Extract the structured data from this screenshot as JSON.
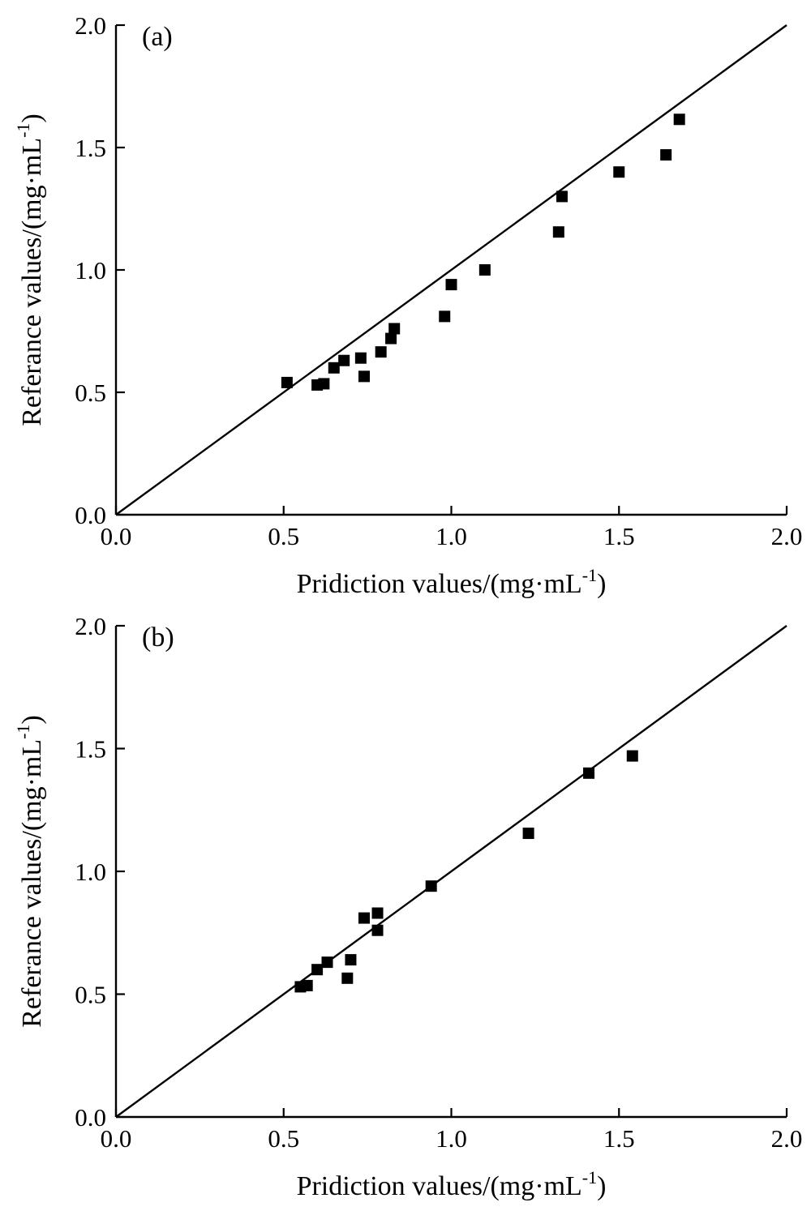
{
  "chart_data": [
    {
      "type": "scatter",
      "panel_label": "(a)",
      "xlabel": "Pridiction values/(mg·mL",
      "ylabel": "Referance values/(mg·mL",
      "unit_exponent": "-1",
      "unit_close": ")",
      "xlim": [
        0,
        2
      ],
      "ylim": [
        0,
        2
      ],
      "xticks": [
        "0.0",
        "0.5",
        "1.0",
        "1.5",
        "2.0"
      ],
      "yticks": [
        "0.0",
        "0.5",
        "1.0",
        "1.5",
        "2.0"
      ],
      "reference_line": "y = x",
      "grid": false,
      "points": [
        {
          "x": 0.51,
          "y": 0.54
        },
        {
          "x": 0.6,
          "y": 0.53
        },
        {
          "x": 0.62,
          "y": 0.535
        },
        {
          "x": 0.65,
          "y": 0.6
        },
        {
          "x": 0.68,
          "y": 0.63
        },
        {
          "x": 0.73,
          "y": 0.64
        },
        {
          "x": 0.74,
          "y": 0.565
        },
        {
          "x": 0.79,
          "y": 0.665
        },
        {
          "x": 0.82,
          "y": 0.72
        },
        {
          "x": 0.83,
          "y": 0.76
        },
        {
          "x": 0.98,
          "y": 0.81
        },
        {
          "x": 1.0,
          "y": 0.94
        },
        {
          "x": 1.1,
          "y": 1.0
        },
        {
          "x": 1.32,
          "y": 1.155
        },
        {
          "x": 1.33,
          "y": 1.3
        },
        {
          "x": 1.5,
          "y": 1.4
        },
        {
          "x": 1.64,
          "y": 1.47
        },
        {
          "x": 1.68,
          "y": 1.615
        }
      ]
    },
    {
      "type": "scatter",
      "panel_label": "(b)",
      "xlabel": "Pridiction values/(mg·mL",
      "ylabel": "Referance values/(mg·mL",
      "unit_exponent": "-1",
      "unit_close": ")",
      "xlim": [
        0,
        2
      ],
      "ylim": [
        0,
        2
      ],
      "xticks": [
        "0.0",
        "0.5",
        "1.0",
        "1.5",
        "2.0"
      ],
      "yticks": [
        "0.0",
        "0.5",
        "1.0",
        "1.5",
        "2.0"
      ],
      "reference_line": "y = x",
      "grid": false,
      "points": [
        {
          "x": 0.55,
          "y": 0.53
        },
        {
          "x": 0.57,
          "y": 0.535
        },
        {
          "x": 0.6,
          "y": 0.6
        },
        {
          "x": 0.63,
          "y": 0.63
        },
        {
          "x": 0.69,
          "y": 0.565
        },
        {
          "x": 0.7,
          "y": 0.64
        },
        {
          "x": 0.74,
          "y": 0.81
        },
        {
          "x": 0.78,
          "y": 0.83
        },
        {
          "x": 0.78,
          "y": 0.76
        },
        {
          "x": 0.94,
          "y": 0.94
        },
        {
          "x": 1.23,
          "y": 1.155
        },
        {
          "x": 1.41,
          "y": 1.4
        },
        {
          "x": 1.54,
          "y": 1.47
        }
      ]
    }
  ]
}
